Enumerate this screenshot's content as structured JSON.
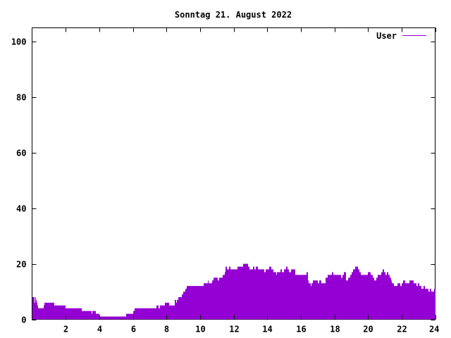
{
  "chart_data": {
    "type": "bar",
    "title": "Sonntag 21. August 2022",
    "xlabel": "",
    "ylabel": "",
    "xlim": [
      0,
      24
    ],
    "ylim": [
      0,
      105
    ],
    "x_ticks": [
      2,
      4,
      6,
      8,
      10,
      12,
      14,
      16,
      18,
      20,
      22,
      24
    ],
    "y_ticks": [
      0,
      20,
      40,
      60,
      80,
      100
    ],
    "grid": false,
    "legend_position": "top-right",
    "series": [
      {
        "name": "User",
        "color": "#9400d3",
        "values": [
          8,
          8,
          8,
          6,
          8,
          7,
          6,
          5,
          4,
          4,
          4,
          4,
          4,
          4,
          4,
          4,
          5,
          6,
          6,
          6,
          6,
          6,
          6,
          6,
          6,
          6,
          6,
          6,
          6,
          6,
          6,
          5,
          5,
          5,
          5,
          5,
          5,
          5,
          5,
          5,
          5,
          5,
          5,
          5,
          5,
          5,
          5,
          4,
          4,
          4,
          4,
          4,
          4,
          4,
          4,
          4,
          4,
          4,
          4,
          4,
          4,
          4,
          4,
          4,
          4,
          4,
          4,
          4,
          4,
          4,
          3,
          3,
          3,
          3,
          3,
          3,
          3,
          3,
          3,
          3,
          3,
          3,
          3,
          3,
          2,
          3,
          3,
          3,
          3,
          3,
          2,
          2,
          2,
          2,
          2,
          1,
          1,
          1,
          1,
          1,
          1,
          1,
          1,
          1,
          1,
          1,
          1,
          1,
          1,
          1,
          1,
          1,
          1,
          1,
          1,
          1,
          1,
          1,
          1,
          1,
          1,
          1,
          1,
          1,
          1,
          1,
          1,
          1,
          1,
          1,
          1,
          1,
          1,
          2,
          2,
          2,
          2,
          2,
          2,
          2,
          2,
          2,
          2,
          3,
          3,
          3,
          4,
          4,
          4,
          4,
          4,
          4,
          4,
          4,
          4,
          4,
          4,
          4,
          4,
          4,
          4,
          4,
          4,
          4,
          4,
          4,
          4,
          4,
          4,
          4,
          4,
          4,
          4,
          4,
          4,
          4,
          4,
          5,
          5,
          5,
          4,
          4,
          5,
          5,
          5,
          5,
          5,
          5,
          5,
          6,
          6,
          6,
          6,
          6,
          6,
          5,
          5,
          5,
          5,
          5,
          5,
          5,
          5,
          7,
          7,
          6,
          7,
          7,
          8,
          8,
          8,
          8,
          8,
          9,
          9,
          10,
          10,
          10,
          11,
          11,
          12,
          12,
          12,
          12,
          12,
          12,
          12,
          12,
          12,
          12,
          12,
          12,
          12,
          12,
          12,
          12,
          12,
          12,
          12,
          12,
          12,
          12,
          12,
          12,
          13,
          13,
          13,
          13,
          13,
          13,
          14,
          13,
          13,
          13,
          13,
          13,
          14,
          14,
          15,
          15,
          15,
          15,
          15,
          15,
          14,
          14,
          15,
          15,
          15,
          15,
          15,
          16,
          16,
          16,
          17,
          19,
          19,
          18,
          18,
          18,
          19,
          19,
          18,
          18,
          18,
          18,
          18,
          18,
          18,
          18,
          18,
          18,
          19,
          19,
          19,
          19,
          19,
          19,
          19,
          19,
          20,
          20,
          20,
          20,
          20,
          20,
          20,
          19,
          19,
          18,
          18,
          18,
          18,
          18,
          19,
          19,
          18,
          18,
          19,
          19,
          19,
          18,
          18,
          18,
          18,
          18,
          18,
          18,
          18,
          18,
          17,
          17,
          18,
          18,
          18,
          18,
          18,
          19,
          19,
          19,
          18,
          18,
          18,
          17,
          17,
          17,
          17,
          16,
          17,
          17,
          17,
          17,
          17,
          18,
          18,
          17,
          17,
          17,
          18,
          18,
          18,
          19,
          19,
          18,
          18,
          17,
          17,
          17,
          18,
          18,
          18,
          18,
          18,
          18,
          16,
          16,
          16,
          16,
          16,
          16,
          16,
          16,
          16,
          16,
          16,
          16,
          16,
          16,
          16,
          16,
          17,
          17,
          14,
          13,
          13,
          13,
          12,
          13,
          13,
          14,
          14,
          14,
          14,
          14,
          14,
          14,
          13,
          13,
          14,
          14,
          14,
          13,
          13,
          13,
          13,
          13,
          13,
          15,
          15,
          15,
          16,
          16,
          16,
          16,
          16,
          16,
          17,
          17,
          16,
          16,
          16,
          16,
          16,
          16,
          16,
          16,
          16,
          16,
          16,
          16,
          15,
          15,
          16,
          16,
          17,
          17,
          17,
          14,
          14,
          14,
          15,
          15,
          15,
          16,
          16,
          17,
          17,
          18,
          18,
          18,
          19,
          19,
          19,
          19,
          18,
          18,
          17,
          17,
          16,
          16,
          16,
          16,
          16,
          16,
          16,
          16,
          16,
          16,
          17,
          17,
          17,
          17,
          16,
          16,
          16,
          15,
          15,
          14,
          14,
          14,
          15,
          15,
          16,
          16,
          16,
          16,
          16,
          17,
          17,
          18,
          18,
          17,
          17,
          16,
          16,
          17,
          17,
          16,
          16,
          15,
          15,
          14,
          13,
          13,
          13,
          12,
          12,
          12,
          12,
          12,
          13,
          13,
          13,
          13,
          12,
          12,
          13,
          13,
          14,
          14,
          14,
          13,
          13,
          13,
          13,
          13,
          13,
          14,
          14,
          14,
          14,
          14,
          14,
          13,
          13,
          13,
          13,
          12,
          12,
          13,
          13,
          12,
          12,
          12,
          11,
          11,
          11,
          12,
          12,
          11,
          11,
          11,
          11,
          11,
          10,
          10,
          11,
          11,
          10,
          10,
          10,
          10,
          11,
          11
        ]
      }
    ]
  }
}
